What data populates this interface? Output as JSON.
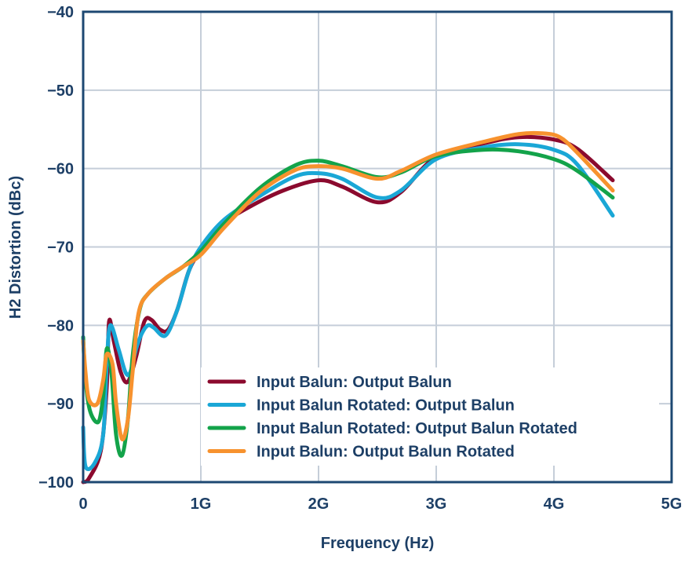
{
  "chart_data": {
    "type": "line",
    "title": "",
    "xlabel": "Frequency (Hz)",
    "ylabel": "H2 Distortion (dBc)",
    "xlim": [
      0,
      5
    ],
    "ylim": [
      -100,
      -40
    ],
    "x_ticks": [
      0,
      1,
      2,
      3,
      4,
      5
    ],
    "x_tick_labels": [
      "0",
      "1G",
      "2G",
      "3G",
      "4G",
      "5G"
    ],
    "y_ticks": [
      -100,
      -90,
      -80,
      -70,
      -60,
      -50,
      -40
    ],
    "y_tick_labels": [
      "−100",
      "−90",
      "−80",
      "−70",
      "−60",
      "−50",
      "−40"
    ],
    "grid": true,
    "legend_position": "bottom-right",
    "series": [
      {
        "name": "Input Balun: Output Balun",
        "color": "#8b0a2e",
        "points": [
          [
            0,
            -100
          ],
          [
            0.05,
            -99.5
          ],
          [
            0.15,
            -96
          ],
          [
            0.2,
            -88
          ],
          [
            0.22,
            -79.5
          ],
          [
            0.26,
            -82
          ],
          [
            0.32,
            -86
          ],
          [
            0.38,
            -87.2
          ],
          [
            0.45,
            -84
          ],
          [
            0.52,
            -79.5
          ],
          [
            0.58,
            -79.3
          ],
          [
            0.65,
            -80.5
          ],
          [
            0.72,
            -80.6
          ],
          [
            0.8,
            -78
          ],
          [
            0.9,
            -73
          ],
          [
            1.0,
            -70.5
          ],
          [
            1.2,
            -67
          ],
          [
            1.4,
            -65
          ],
          [
            1.7,
            -62.8
          ],
          [
            2.0,
            -61.5
          ],
          [
            2.2,
            -62.3
          ],
          [
            2.5,
            -64.3
          ],
          [
            2.7,
            -63
          ],
          [
            3.0,
            -58.5
          ],
          [
            3.4,
            -56.8
          ],
          [
            3.7,
            -56
          ],
          [
            4.0,
            -56.3
          ],
          [
            4.2,
            -57.5
          ],
          [
            4.5,
            -61.5
          ]
        ]
      },
      {
        "name": "Input Balun Rotated: Output Balun",
        "color": "#1aa7d6",
        "points": [
          [
            0,
            -93
          ],
          [
            0.02,
            -98
          ],
          [
            0.1,
            -97.5
          ],
          [
            0.17,
            -94
          ],
          [
            0.2,
            -85
          ],
          [
            0.23,
            -80
          ],
          [
            0.3,
            -83
          ],
          [
            0.36,
            -86
          ],
          [
            0.4,
            -86
          ],
          [
            0.45,
            -83
          ],
          [
            0.5,
            -81
          ],
          [
            0.55,
            -80
          ],
          [
            0.6,
            -80.3
          ],
          [
            0.7,
            -81.3
          ],
          [
            0.8,
            -78
          ],
          [
            0.9,
            -73
          ],
          [
            1.0,
            -70
          ],
          [
            1.2,
            -66.5
          ],
          [
            1.5,
            -63.5
          ],
          [
            1.8,
            -61
          ],
          [
            2.0,
            -60.6
          ],
          [
            2.2,
            -61.3
          ],
          [
            2.5,
            -63.7
          ],
          [
            2.7,
            -62.8
          ],
          [
            3.0,
            -58.8
          ],
          [
            3.4,
            -57.3
          ],
          [
            3.7,
            -56.9
          ],
          [
            4.0,
            -57.6
          ],
          [
            4.2,
            -59.5
          ],
          [
            4.5,
            -66
          ]
        ]
      },
      {
        "name": "Input Balun Rotated: Output Balun Rotated",
        "color": "#13a34a",
        "points": [
          [
            0,
            -81.5
          ],
          [
            0.02,
            -87
          ],
          [
            0.06,
            -91
          ],
          [
            0.13,
            -92.3
          ],
          [
            0.17,
            -89
          ],
          [
            0.2,
            -83
          ],
          [
            0.24,
            -86
          ],
          [
            0.28,
            -94
          ],
          [
            0.33,
            -96.6
          ],
          [
            0.38,
            -92
          ],
          [
            0.42,
            -84
          ],
          [
            0.48,
            -78
          ],
          [
            0.55,
            -76
          ],
          [
            0.7,
            -74
          ],
          [
            0.85,
            -72.5
          ],
          [
            1.0,
            -70.5
          ],
          [
            1.2,
            -67
          ],
          [
            1.5,
            -62.5
          ],
          [
            1.8,
            -59.6
          ],
          [
            2.0,
            -59
          ],
          [
            2.2,
            -59.7
          ],
          [
            2.5,
            -61.1
          ],
          [
            2.7,
            -60.5
          ],
          [
            3.0,
            -58.4
          ],
          [
            3.4,
            -57.6
          ],
          [
            3.7,
            -57.8
          ],
          [
            4.0,
            -58.8
          ],
          [
            4.2,
            -60.3
          ],
          [
            4.5,
            -63.7
          ]
        ]
      },
      {
        "name": "Input Balun: Output Balun Rotated",
        "color": "#f7922e",
        "points": [
          [
            0,
            -82
          ],
          [
            0.02,
            -86
          ],
          [
            0.05,
            -89.5
          ],
          [
            0.12,
            -90
          ],
          [
            0.17,
            -87
          ],
          [
            0.2,
            -83.7
          ],
          [
            0.25,
            -85
          ],
          [
            0.28,
            -90
          ],
          [
            0.33,
            -94.5
          ],
          [
            0.38,
            -92
          ],
          [
            0.42,
            -86
          ],
          [
            0.47,
            -78.5
          ],
          [
            0.55,
            -76
          ],
          [
            0.7,
            -74
          ],
          [
            0.85,
            -72.5
          ],
          [
            1.0,
            -71
          ],
          [
            1.2,
            -67.5
          ],
          [
            1.5,
            -63
          ],
          [
            1.8,
            -60.2
          ],
          [
            2.0,
            -59.7
          ],
          [
            2.2,
            -60
          ],
          [
            2.5,
            -61.3
          ],
          [
            2.7,
            -60.3
          ],
          [
            3.0,
            -58.2
          ],
          [
            3.4,
            -56.6
          ],
          [
            3.7,
            -55.6
          ],
          [
            3.9,
            -55.5
          ],
          [
            4.05,
            -56
          ],
          [
            4.2,
            -58
          ],
          [
            4.5,
            -62.8
          ]
        ]
      }
    ],
    "axis_color": "#1d4872",
    "grid_color": "#c5ced9"
  }
}
